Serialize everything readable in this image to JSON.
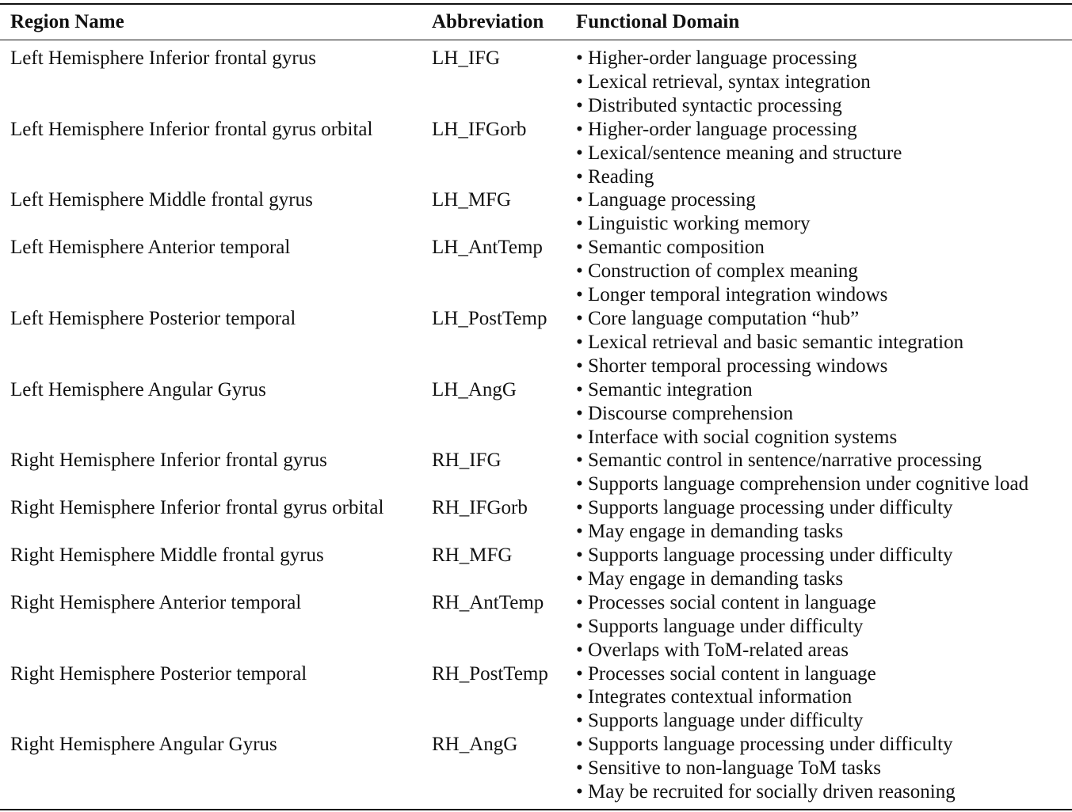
{
  "table": {
    "headers": [
      "Region Name",
      "Abbreviation",
      "Functional Domain"
    ],
    "rows": [
      {
        "region": "Left Hemisphere Inferior frontal gyrus",
        "abbr": "LH_IFG",
        "domains": [
          "Higher-order language processing",
          "Lexical retrieval, syntax integration",
          "Distributed syntactic processing"
        ]
      },
      {
        "region": "Left Hemisphere Inferior frontal gyrus orbital",
        "abbr": "LH_IFGorb",
        "domains": [
          "Higher-order language processing",
          "Lexical/sentence meaning and structure",
          "Reading"
        ]
      },
      {
        "region": "Left Hemisphere Middle frontal gyrus",
        "abbr": "LH_MFG",
        "domains": [
          "Language processing",
          "Linguistic working memory"
        ]
      },
      {
        "region": "Left Hemisphere Anterior temporal",
        "abbr": "LH_AntTemp",
        "domains": [
          "Semantic composition",
          "Construction of complex meaning",
          "Longer temporal integration windows"
        ]
      },
      {
        "region": "Left Hemisphere Posterior temporal",
        "abbr": "LH_PostTemp",
        "domains": [
          "Core language computation “hub”",
          "Lexical retrieval and basic semantic integration",
          "Shorter temporal processing windows"
        ]
      },
      {
        "region": "Left Hemisphere Angular Gyrus",
        "abbr": "LH_AngG",
        "domains": [
          "Semantic integration",
          "Discourse comprehension",
          "Interface with social cognition systems"
        ]
      },
      {
        "region": "Right Hemisphere Inferior frontal gyrus",
        "abbr": "RH_IFG",
        "domains": [
          "Semantic control in sentence/narrative processing",
          "Supports language comprehension under cognitive load"
        ]
      },
      {
        "region": "Right Hemisphere Inferior frontal gyrus orbital",
        "abbr": "RH_IFGorb",
        "domains": [
          "Supports language processing under difficulty",
          "May engage in demanding tasks"
        ]
      },
      {
        "region": "Right Hemisphere Middle frontal gyrus",
        "abbr": "RH_MFG",
        "domains": [
          "Supports language processing under difficulty",
          "May engage in demanding tasks"
        ]
      },
      {
        "region": "Right Hemisphere Anterior temporal",
        "abbr": "RH_AntTemp",
        "domains": [
          "Processes social content in language",
          "Supports language under difficulty",
          "Overlaps with ToM-related areas"
        ]
      },
      {
        "region": "Right Hemisphere Posterior temporal",
        "abbr": "RH_PostTemp",
        "domains": [
          "Processes social content in language",
          "Integrates contextual information",
          "Supports language under difficulty"
        ]
      },
      {
        "region": "Right Hemisphere Angular Gyrus",
        "abbr": "RH_AngG",
        "domains": [
          "Supports language processing under difficulty",
          "Sensitive to non-language ToM tasks",
          "May be recruited for socially driven reasoning"
        ]
      }
    ]
  }
}
